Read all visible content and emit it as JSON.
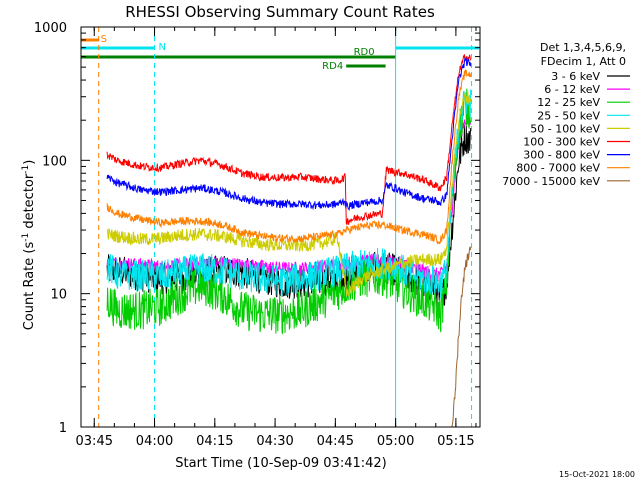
{
  "chart_data": {
    "type": "line",
    "title": "RHESSI Observing Summary Count Rates",
    "xlabel": "Start Time (10-Sep-09 03:41:42)",
    "ylabel_main": "Count Rate (s",
    "ylabel_sup1": "-1",
    "ylabel_mid": " detector",
    "ylabel_sup2": "-1",
    "ylabel_end": ")",
    "yscale": "log",
    "ylim": [
      1,
      1000
    ],
    "xlim_minutes": [
      0,
      99.3
    ],
    "yticks": [
      {
        "value": 1,
        "label": "1"
      },
      {
        "value": 10,
        "label": "10"
      },
      {
        "value": 100,
        "label": "100"
      },
      {
        "value": 1000,
        "label": "1000"
      }
    ],
    "xticks": [
      {
        "minutes": 3.3,
        "label": "03:45"
      },
      {
        "minutes": 18.3,
        "label": "04:00"
      },
      {
        "minutes": 33.3,
        "label": "04:15"
      },
      {
        "minutes": 48.3,
        "label": "04:30"
      },
      {
        "minutes": 63.3,
        "label": "04:45"
      },
      {
        "minutes": 78.3,
        "label": "05:00"
      },
      {
        "minutes": 93.3,
        "label": "05:15"
      }
    ],
    "legend_header": [
      "Det 1,3,4,5,6,9,",
      "FDecim 1, Att 0"
    ],
    "legend_position": "right",
    "flags": [
      {
        "label": "S",
        "color": "#ff8000",
        "start": 0,
        "end": 4.4,
        "level": 2
      },
      {
        "label": "N",
        "color": "#00e5ee",
        "start": 0,
        "end": 18.3,
        "level": 1
      },
      {
        "label": "N",
        "color": "#00e5ee",
        "start": 78.3,
        "end": 99.0,
        "level": 1,
        "hide_label": true
      },
      {
        "label": "RD0",
        "color": "#008000",
        "start": 0,
        "end": 78.3,
        "level": 0
      },
      {
        "label": "RD4",
        "color": "#008000",
        "start": 66.0,
        "end": 75.8,
        "level": -1
      }
    ],
    "vlines": [
      {
        "minutes": 4.4,
        "color": "#ff8000"
      },
      {
        "minutes": 18.3,
        "color": "#00e5ee"
      },
      {
        "minutes": 78.3,
        "color": "#00e5ee",
        "solid": true
      },
      {
        "minutes": 97.2,
        "color": "#00e5ee"
      }
    ],
    "series": [
      {
        "name": "3 - 6 keV",
        "color": "#000000",
        "x": [
          6.5,
          9,
          15,
          20,
          25,
          30,
          35,
          40,
          45,
          50,
          55,
          60,
          64,
          66,
          70,
          75,
          78.3,
          80,
          85,
          88,
          89.5,
          91,
          92.5,
          94,
          95.5,
          97
        ],
        "y": [
          15,
          15,
          13.5,
          13,
          13,
          14,
          15,
          14.5,
          13,
          12,
          12,
          12.5,
          13.5,
          14,
          15,
          16,
          15,
          14,
          12,
          11,
          9,
          12,
          35,
          100,
          150,
          140
        ],
        "noise": 0.12
      },
      {
        "name": "6 - 12 keV",
        "color": "#ff00ff",
        "x": [
          6.5,
          9,
          15,
          20,
          25,
          30,
          35,
          40,
          45,
          50,
          55,
          60,
          64,
          66,
          70,
          75,
          78.3,
          80,
          85,
          88,
          89.5,
          91,
          92.5,
          94,
          95.5,
          97
        ],
        "y": [
          18,
          17,
          16.5,
          16,
          16.5,
          17,
          17,
          16.5,
          16,
          15.5,
          15.5,
          16,
          16.5,
          17,
          17.5,
          18,
          17,
          17,
          15,
          14,
          14,
          16,
          50,
          140,
          200,
          190
        ],
        "noise": 0.05
      },
      {
        "name": "12 - 25 keV",
        "color": "#00cc00",
        "x": [
          6.5,
          9,
          15,
          20,
          25,
          30,
          35,
          40,
          45,
          50,
          55,
          60,
          64,
          66,
          70,
          75,
          78.3,
          80,
          85,
          88,
          89.5,
          91,
          92.5,
          94,
          95.5,
          97
        ],
        "y": [
          9,
          7.5,
          7.5,
          8,
          10,
          11.5,
          10,
          7.5,
          7,
          7,
          7.5,
          9,
          10.5,
          11.5,
          13,
          13.5,
          12,
          11,
          9,
          8,
          7,
          12,
          60,
          170,
          250,
          240
        ],
        "noise": 0.15
      },
      {
        "name": "25 - 50 keV",
        "color": "#00e5ee",
        "x": [
          6.5,
          9,
          15,
          20,
          25,
          30,
          35,
          40,
          45,
          50,
          55,
          60,
          64,
          66,
          70,
          75,
          78.3,
          80,
          85,
          88,
          89.5,
          91,
          92.5,
          94,
          95.5,
          97
        ],
        "y": [
          16,
          14,
          13.5,
          13.5,
          14.5,
          15.5,
          15,
          13.5,
          13,
          12.5,
          13,
          14,
          15,
          15.5,
          16.5,
          17,
          16,
          15,
          13,
          12.5,
          12,
          15,
          60,
          180,
          280,
          270
        ],
        "noise": 0.12
      },
      {
        "name": "50 - 100 keV",
        "color": "#cccc00",
        "x": [
          6.5,
          9,
          15,
          20,
          25,
          30,
          35,
          40,
          45,
          50,
          55,
          60,
          64,
          66,
          70,
          75,
          78.3,
          80,
          85,
          88,
          89.5,
          91,
          92.5,
          94,
          95.5,
          97
        ],
        "y": [
          28,
          27,
          25.5,
          26,
          27.5,
          28,
          27,
          25,
          23.5,
          23,
          23,
          24,
          26,
          10,
          13,
          15,
          16,
          17,
          18,
          18,
          18,
          22,
          70,
          200,
          300,
          290
        ],
        "noise": 0.05
      },
      {
        "name": "100 - 300 keV",
        "color": "#ff0000",
        "x": [
          6.5,
          9,
          15,
          20,
          25,
          30,
          35,
          40,
          45,
          50,
          55,
          60,
          64,
          65.8,
          66,
          70,
          75,
          76,
          78.3,
          80,
          85,
          88,
          89.5,
          91,
          92.5,
          94,
          95.5,
          97
        ],
        "y": [
          110,
          100,
          90,
          88,
          95,
          100,
          92,
          80,
          75,
          74,
          75,
          72,
          70,
          75,
          35,
          38,
          40,
          85,
          82,
          80,
          72,
          65,
          62,
          75,
          200,
          450,
          600,
          580
        ],
        "noise": 0.03
      },
      {
        "name": "300 - 800 keV",
        "color": "#0000ff",
        "x": [
          6.5,
          9,
          15,
          20,
          25,
          30,
          35,
          40,
          45,
          50,
          55,
          60,
          64,
          65.8,
          66,
          70,
          75,
          76,
          78.3,
          80,
          85,
          88,
          89.5,
          91,
          92.5,
          94,
          95.5,
          97
        ],
        "y": [
          75,
          68,
          60,
          58,
          60,
          62,
          58,
          52,
          48,
          47,
          47,
          46,
          47,
          50,
          45,
          48,
          50,
          65,
          62,
          58,
          52,
          50,
          48,
          55,
          160,
          400,
          550,
          530
        ],
        "noise": 0.03
      },
      {
        "name": "800 - 7000 keV",
        "color": "#ff8000",
        "x": [
          6.5,
          9,
          15,
          20,
          25,
          30,
          35,
          40,
          45,
          50,
          55,
          60,
          64,
          66,
          70,
          75,
          78.3,
          80,
          85,
          88,
          89.5,
          91,
          92.5,
          94,
          95.5,
          97
        ],
        "y": [
          45,
          40,
          36,
          34,
          35,
          35,
          33,
          29,
          27,
          26,
          26,
          27,
          28,
          30,
          32,
          33,
          31,
          30,
          28,
          26,
          25,
          30,
          110,
          300,
          450,
          440
        ],
        "noise": 0.03
      },
      {
        "name": "7000 - 15000 keV",
        "color": "#996633",
        "x": [
          92.3,
          93,
          94,
          95,
          96,
          97
        ],
        "y": [
          1,
          1.6,
          5,
          12,
          18,
          22
        ],
        "noise": 0.05
      }
    ]
  },
  "footer": {
    "date_stamp": "15-Oct-2021 18:00"
  }
}
